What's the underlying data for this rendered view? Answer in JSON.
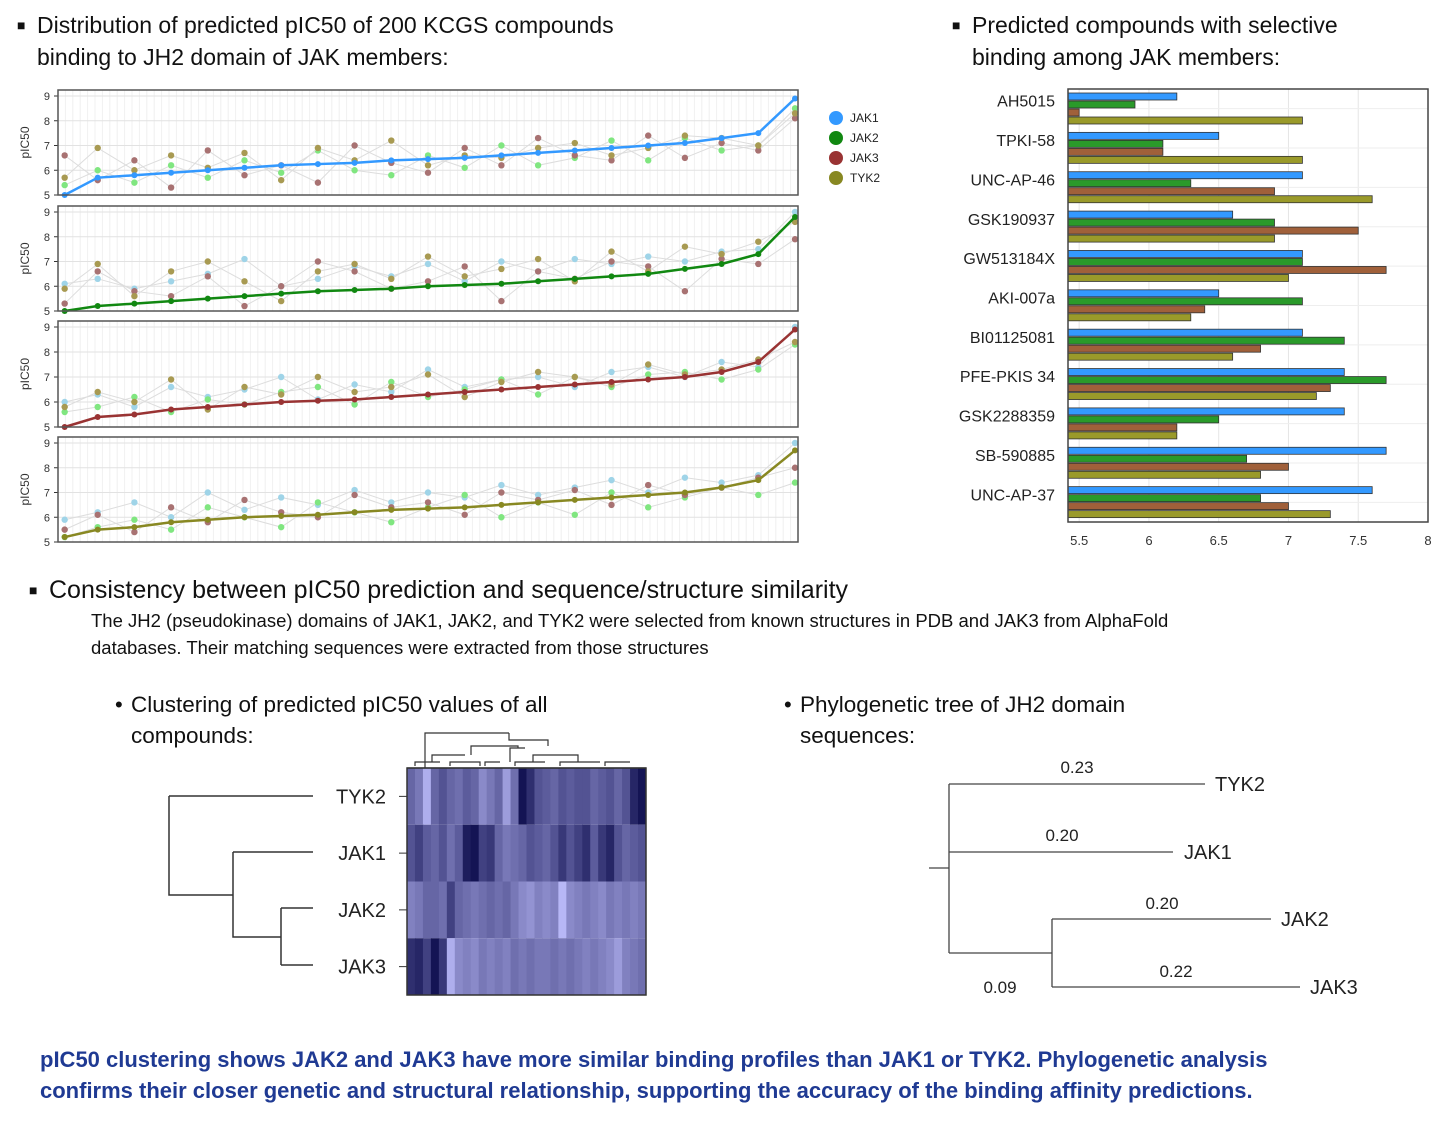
{
  "sections": {
    "distribution_title_1": "Distribution of predicted pIC50 of 200 KCGS compounds",
    "distribution_title_2": "binding to JH2 domain of JAK members:",
    "selective_title_1": "Predicted compounds with selective",
    "selective_title_2": "binding among  JAK members:",
    "consistency_title": "Consistency between pIC50 prediction and sequence/structure similarity",
    "consistency_text_1": "The JH2 (pseudokinase) domains of JAK1, JAK2, and TYK2 were selected from known structures in PDB and JAK3 from AlphaFold",
    "consistency_text_2": "databases. Their matching sequences were extracted from those structures",
    "clustering_title_1": "Clustering of predicted pIC50 values of all",
    "clustering_title_2": "compounds:",
    "phylo_title_1": "Phylogenetic tree of JH2 domain",
    "phylo_title_2": "sequences:",
    "conclusion_1": "pIC50 clustering shows JAK2 and JAK3 have more similar binding profiles than JAK1 or TYK2. Phylogenetic analysis",
    "conclusion_2": "confirms their closer genetic and structural relationship, supporting the accuracy of the binding affinity predictions."
  },
  "colors": {
    "JAK1": "#3399ff",
    "JAK2": "#118811",
    "JAK3": "#993333",
    "TYK2": "#888822",
    "JAK1_light": "#9fd4e8",
    "JAK2_light": "#80e680",
    "JAK3_light": "#a87272",
    "TYK2_light": "#a89a52",
    "bar_JAK1": "#3399ff",
    "bar_JAK2": "#2a9a2a",
    "bar_JAK3": "#a0603a",
    "bar_TYK2": "#9a9a2a",
    "conclusion": "#1f3a93"
  },
  "chart_data": [
    {
      "type": "scatter",
      "ylabel": "pIC50",
      "ylim": [
        5,
        9
      ],
      "yticks": [
        "5",
        "6",
        "7",
        "8",
        "9"
      ],
      "xlim": [
        0,
        200
      ],
      "grid": true,
      "legend": {
        "placement": "right",
        "entries": [
          "JAK1",
          "JAK2",
          "JAK3",
          "TYK2"
        ]
      },
      "x": [
        1,
        10,
        20,
        30,
        40,
        50,
        60,
        70,
        80,
        90,
        100,
        110,
        120,
        130,
        140,
        150,
        160,
        170,
        180,
        190,
        200
      ],
      "panels": [
        {
          "sorted_by": "JAK1",
          "series": {
            "JAK1": [
              5.0,
              5.7,
              5.8,
              5.9,
              6.0,
              6.1,
              6.2,
              6.25,
              6.3,
              6.4,
              6.45,
              6.5,
              6.6,
              6.7,
              6.8,
              6.9,
              7.0,
              7.1,
              7.3,
              7.5,
              8.9
            ],
            "JAK2": [
              5.4,
              6.0,
              5.5,
              6.2,
              5.7,
              6.4,
              5.9,
              6.8,
              6.0,
              5.8,
              6.6,
              6.1,
              7.0,
              6.2,
              6.5,
              7.2,
              6.4,
              7.3,
              6.8,
              7.0,
              8.5
            ],
            "JAK3": [
              6.6,
              5.6,
              6.4,
              5.3,
              6.8,
              5.8,
              6.2,
              5.5,
              7.0,
              6.3,
              5.9,
              6.9,
              6.2,
              7.3,
              6.6,
              6.4,
              7.4,
              6.5,
              7.1,
              6.8,
              8.1
            ],
            "TYK2": [
              5.7,
              6.9,
              6.0,
              6.6,
              6.1,
              6.7,
              5.6,
              6.9,
              6.4,
              7.2,
              6.2,
              6.6,
              6.5,
              6.9,
              7.1,
              6.6,
              6.9,
              7.4,
              7.3,
              7.0,
              8.3
            ]
          }
        },
        {
          "sorted_by": "JAK2",
          "series": {
            "JAK1": [
              6.1,
              6.3,
              5.9,
              6.2,
              6.5,
              7.1,
              6.0,
              6.3,
              6.8,
              6.4,
              6.9,
              6.2,
              7.0,
              6.6,
              7.1,
              6.9,
              7.2,
              7.0,
              7.4,
              7.5,
              9.0
            ],
            "JAK2": [
              5.0,
              5.2,
              5.3,
              5.4,
              5.5,
              5.6,
              5.7,
              5.8,
              5.85,
              5.9,
              6.0,
              6.05,
              6.1,
              6.2,
              6.3,
              6.4,
              6.5,
              6.7,
              6.9,
              7.3,
              8.8
            ],
            "JAK3": [
              5.3,
              6.6,
              5.8,
              5.6,
              6.4,
              5.2,
              6.0,
              7.0,
              6.6,
              5.9,
              6.2,
              6.8,
              5.4,
              6.6,
              6.3,
              7.0,
              6.8,
              5.8,
              7.1,
              6.9,
              7.9
            ],
            "TYK2": [
              5.9,
              6.9,
              5.6,
              6.6,
              7.0,
              6.2,
              5.4,
              6.6,
              6.9,
              6.3,
              7.2,
              6.4,
              6.7,
              7.1,
              6.2,
              7.4,
              6.6,
              7.6,
              7.3,
              7.8,
              8.6
            ]
          }
        },
        {
          "sorted_by": "JAK3",
          "series": {
            "JAK1": [
              6.0,
              6.3,
              5.8,
              6.6,
              6.2,
              6.5,
              7.0,
              6.1,
              6.7,
              6.4,
              7.3,
              6.6,
              6.9,
              7.0,
              6.6,
              7.2,
              7.4,
              7.0,
              7.6,
              7.4,
              9.0
            ],
            "JAK2": [
              5.6,
              5.8,
              6.2,
              5.6,
              6.1,
              5.9,
              6.4,
              6.6,
              5.9,
              6.8,
              6.2,
              6.5,
              6.9,
              6.3,
              7.0,
              6.6,
              7.1,
              7.2,
              6.9,
              7.3,
              8.3
            ],
            "JAK3": [
              5.0,
              5.4,
              5.5,
              5.7,
              5.8,
              5.9,
              6.0,
              6.05,
              6.1,
              6.2,
              6.3,
              6.4,
              6.5,
              6.6,
              6.7,
              6.8,
              6.9,
              7.0,
              7.2,
              7.6,
              8.9
            ],
            "TYK2": [
              5.8,
              6.4,
              6.0,
              6.9,
              5.7,
              6.6,
              6.3,
              7.0,
              6.4,
              6.6,
              7.1,
              6.2,
              6.8,
              7.2,
              7.0,
              6.7,
              7.5,
              7.1,
              7.3,
              7.7,
              8.4
            ]
          }
        },
        {
          "sorted_by": "TYK2",
          "series": {
            "JAK1": [
              5.9,
              6.2,
              6.6,
              6.0,
              7.0,
              6.3,
              6.8,
              6.5,
              7.1,
              6.6,
              7.0,
              6.8,
              7.3,
              6.9,
              7.2,
              7.5,
              7.0,
              7.6,
              7.4,
              7.7,
              9.0
            ],
            "JAK2": [
              5.2,
              5.6,
              5.9,
              5.5,
              6.4,
              6.0,
              5.6,
              6.6,
              6.2,
              5.8,
              6.4,
              6.9,
              6.0,
              6.6,
              6.1,
              7.0,
              6.4,
              6.8,
              7.2,
              6.9,
              7.4
            ],
            "JAK3": [
              5.5,
              6.1,
              5.4,
              6.4,
              5.8,
              6.7,
              6.2,
              6.0,
              6.9,
              6.4,
              6.6,
              6.1,
              7.0,
              6.7,
              7.1,
              6.5,
              7.3,
              6.9,
              7.2,
              7.6,
              8.0
            ],
            "TYK2": [
              5.2,
              5.5,
              5.6,
              5.8,
              5.9,
              6.0,
              6.05,
              6.1,
              6.2,
              6.3,
              6.35,
              6.4,
              6.5,
              6.6,
              6.7,
              6.8,
              6.9,
              7.0,
              7.2,
              7.5,
              8.7
            ]
          }
        }
      ]
    },
    {
      "type": "bar",
      "orientation": "horizontal",
      "categories": [
        "AH5015",
        "TPKI-58",
        "UNC-AP-46",
        "GSK190937",
        "GW513184X",
        "AKI-007a",
        "BI01125081",
        "PFE-PKIS 34",
        "GSK2288359",
        "SB-590885",
        "UNC-AP-37"
      ],
      "series": [
        {
          "name": "JAK1",
          "values": [
            6.2,
            6.5,
            7.1,
            6.6,
            7.1,
            6.5,
            7.1,
            7.4,
            7.4,
            7.7,
            7.6
          ]
        },
        {
          "name": "JAK2",
          "values": [
            5.9,
            6.1,
            6.3,
            6.9,
            7.1,
            7.1,
            7.4,
            7.7,
            6.5,
            6.7,
            6.8
          ]
        },
        {
          "name": "JAK3",
          "values": [
            5.5,
            6.1,
            6.9,
            7.5,
            7.7,
            6.4,
            6.8,
            7.3,
            6.2,
            7.0,
            7.0
          ]
        },
        {
          "name": "TYK2",
          "values": [
            7.1,
            7.1,
            7.6,
            6.9,
            7.0,
            6.3,
            6.6,
            7.2,
            6.2,
            6.8,
            7.3
          ]
        }
      ],
      "xlim": [
        5.42,
        8
      ],
      "xticks": [
        "5.5",
        "6",
        "6.5",
        "7",
        "7.5",
        "8"
      ],
      "grid": true
    },
    {
      "type": "heatmap",
      "rows": [
        "TYK2",
        "JAK1",
        "JAK2",
        "JAK3"
      ],
      "row_dendrogram": [
        [
          "JAK2",
          "JAK3"
        ],
        "JAK1",
        "TYK2"
      ],
      "values": [
        [
          0.5,
          0.4,
          0.1,
          0.5,
          0.6,
          0.5,
          0.45,
          0.55,
          0.5,
          0.3,
          0.4,
          0.5,
          0.2,
          0.45,
          0.95,
          0.8,
          0.6,
          0.55,
          0.5,
          0.6,
          0.55,
          0.6,
          0.6,
          0.5,
          0.55,
          0.6,
          0.5,
          0.6,
          0.85,
          0.95
        ],
        [
          0.6,
          0.7,
          0.55,
          0.5,
          0.6,
          0.45,
          0.55,
          0.9,
          0.95,
          0.7,
          0.75,
          0.5,
          0.4,
          0.45,
          0.5,
          0.6,
          0.55,
          0.5,
          0.6,
          0.75,
          0.6,
          0.7,
          0.8,
          0.55,
          0.75,
          0.85,
          0.6,
          0.5,
          0.55,
          0.6
        ],
        [
          0.35,
          0.4,
          0.5,
          0.5,
          0.45,
          0.7,
          0.5,
          0.45,
          0.4,
          0.45,
          0.5,
          0.45,
          0.5,
          0.4,
          0.3,
          0.25,
          0.35,
          0.3,
          0.35,
          0.05,
          0.3,
          0.35,
          0.4,
          0.35,
          0.3,
          0.4,
          0.35,
          0.4,
          0.35,
          0.4
        ],
        [
          0.8,
          0.85,
          0.7,
          0.95,
          0.75,
          0.1,
          0.3,
          0.35,
          0.3,
          0.4,
          0.35,
          0.4,
          0.35,
          0.45,
          0.4,
          0.45,
          0.4,
          0.4,
          0.45,
          0.4,
          0.45,
          0.4,
          0.35,
          0.4,
          0.35,
          0.3,
          0.2,
          0.35,
          0.4,
          0.45
        ]
      ]
    },
    {
      "type": "tree",
      "leaves": [
        "TYK2",
        "JAK1",
        "JAK2",
        "JAK3"
      ],
      "branch_lengths": {
        "TYK2": "0.23",
        "JAK1": "0.20",
        "JAK2": "0.20",
        "JAK3": "0.22",
        "JAK2_JAK3": "0.09"
      }
    }
  ]
}
